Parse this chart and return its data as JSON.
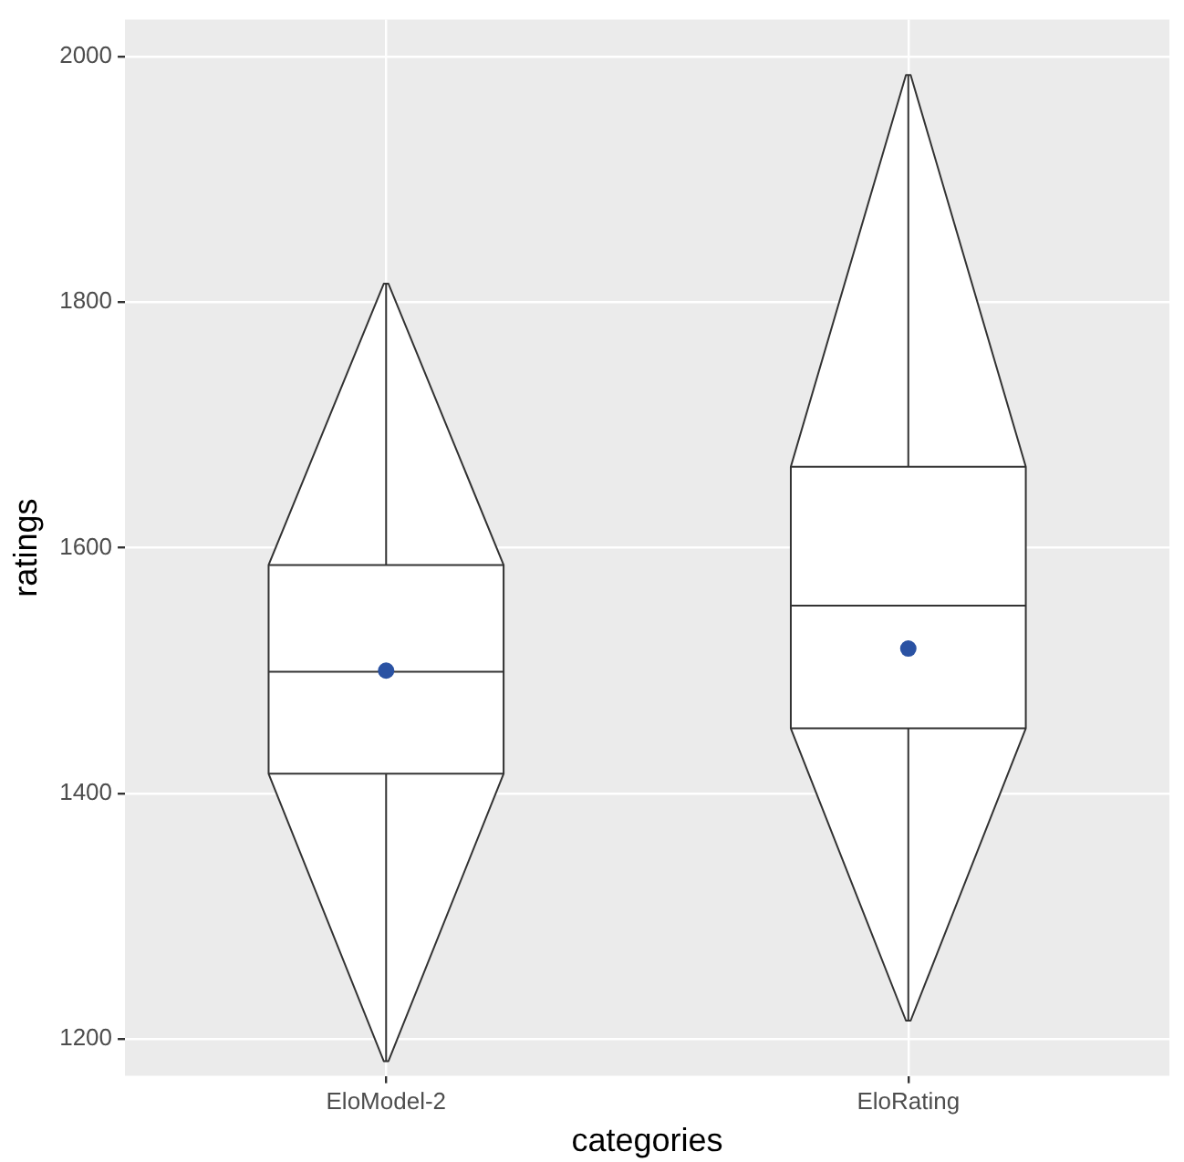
{
  "chart_data": {
    "type": "box",
    "xlabel": "categories",
    "ylabel": "ratings",
    "categories": [
      "EloModel-2",
      "EloRating"
    ],
    "series": [
      {
        "color": "#ffffff",
        "boxes": [
          {
            "low": 1182,
            "q1": 1416,
            "median": 1499,
            "q3": 1586,
            "high": 1815,
            "mean": 1500
          },
          {
            "low": 1215,
            "q1": 1453,
            "median": 1553,
            "q3": 1666,
            "high": 1985,
            "mean": 1518
          }
        ]
      }
    ],
    "ylim": [
      1170,
      2030
    ],
    "yticks": [
      1200,
      1400,
      1600,
      1800,
      2000
    ],
    "grid": true,
    "legend": false
  }
}
